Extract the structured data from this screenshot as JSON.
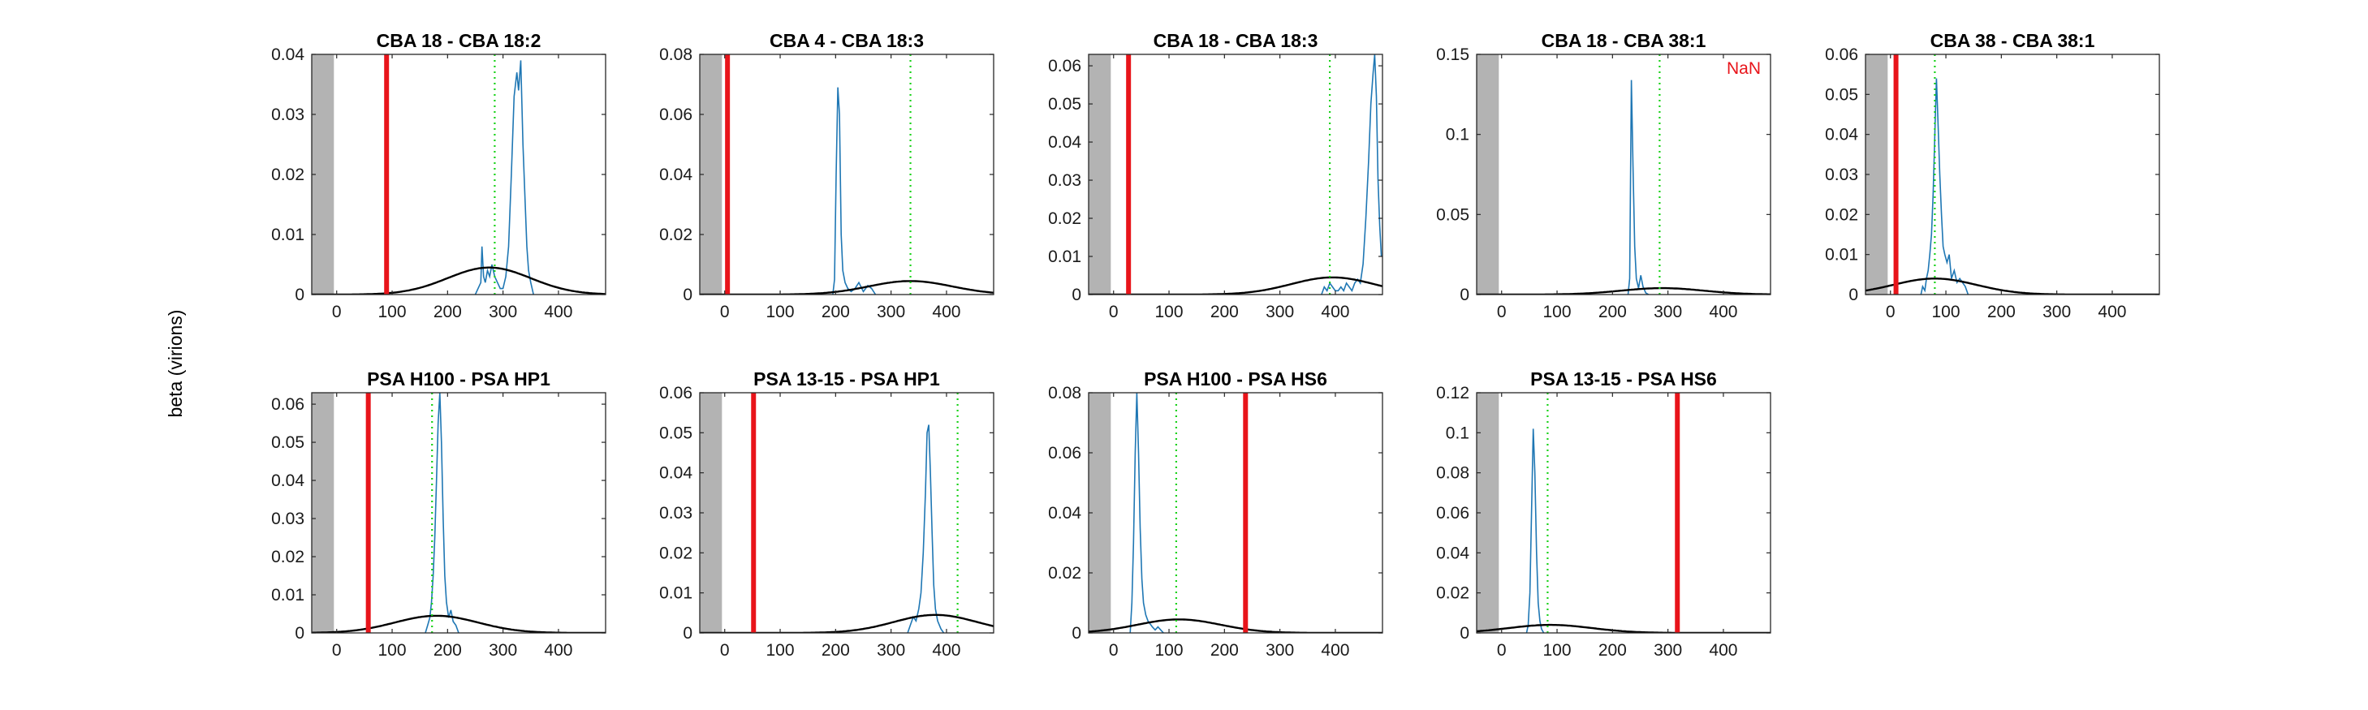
{
  "figure": {
    "ylabel": "beta (virions)"
  },
  "chart_data": [
    {
      "type": "line",
      "title": "CBA 18 - CBA 18:2",
      "xlim": [
        -45,
        485
      ],
      "ylim": [
        0,
        0.04
      ],
      "xticks": [
        0,
        100,
        200,
        300,
        400
      ],
      "yticks": [
        0,
        0.01,
        0.02,
        0.03,
        0.04
      ],
      "ytick_labels": [
        "0",
        "0.01",
        "0.02",
        "0.03",
        "0.04"
      ],
      "shaded_region": [
        -45,
        -5
      ],
      "red_line_x": 90,
      "green_dotted_x": 285,
      "annotation": "",
      "gaussian": {
        "mean": 275,
        "sd": 75,
        "peak": 0.0045
      },
      "histogram": [
        [
          250,
          0
        ],
        [
          255,
          0.001
        ],
        [
          260,
          0.002
        ],
        [
          262,
          0.008
        ],
        [
          265,
          0.003
        ],
        [
          268,
          0.002
        ],
        [
          272,
          0.004
        ],
        [
          276,
          0.003
        ],
        [
          280,
          0.005
        ],
        [
          285,
          0.003
        ],
        [
          290,
          0.002
        ],
        [
          295,
          0.001
        ],
        [
          300,
          0.001
        ],
        [
          305,
          0.003
        ],
        [
          310,
          0.008
        ],
        [
          315,
          0.02
        ],
        [
          320,
          0.033
        ],
        [
          325,
          0.037
        ],
        [
          328,
          0.034
        ],
        [
          332,
          0.039
        ],
        [
          336,
          0.025
        ],
        [
          340,
          0.015
        ],
        [
          343,
          0.008
        ],
        [
          346,
          0.004
        ],
        [
          350,
          0.002
        ],
        [
          355,
          0
        ]
      ]
    },
    {
      "type": "line",
      "title": "CBA 4 - CBA 18:3",
      "xlim": [
        -45,
        485
      ],
      "ylim": [
        0,
        0.08
      ],
      "xticks": [
        0,
        100,
        200,
        300,
        400
      ],
      "yticks": [
        0,
        0.02,
        0.04,
        0.06,
        0.08
      ],
      "ytick_labels": [
        "0",
        "0.02",
        "0.04",
        "0.06",
        "0.08"
      ],
      "shaded_region": [
        -45,
        -5
      ],
      "red_line_x": 5,
      "green_dotted_x": 335,
      "annotation": "",
      "gaussian": {
        "mean": 335,
        "sd": 75,
        "peak": 0.0045
      },
      "histogram": [
        [
          195,
          0
        ],
        [
          198,
          0.005
        ],
        [
          201,
          0.04
        ],
        [
          204,
          0.069
        ],
        [
          207,
          0.06
        ],
        [
          210,
          0.02
        ],
        [
          213,
          0.008
        ],
        [
          217,
          0.004
        ],
        [
          222,
          0.002
        ],
        [
          228,
          0.001
        ],
        [
          235,
          0.002
        ],
        [
          242,
          0.004
        ],
        [
          250,
          0.001
        ],
        [
          258,
          0.003
        ],
        [
          265,
          0.002
        ],
        [
          272,
          0
        ]
      ]
    },
    {
      "type": "line",
      "title": "CBA 18 - CBA 18:3",
      "xlim": [
        -45,
        485
      ],
      "ylim": [
        0,
        0.063
      ],
      "xticks": [
        0,
        100,
        200,
        300,
        400
      ],
      "yticks": [
        0,
        0.01,
        0.02,
        0.03,
        0.04,
        0.05,
        0.06
      ],
      "ytick_labels": [
        "0",
        "0.01",
        "0.02",
        "0.03",
        "0.04",
        "0.05",
        "0.06"
      ],
      "shaded_region": [
        -45,
        -5
      ],
      "red_line_x": 27,
      "green_dotted_x": 390,
      "annotation": "",
      "gaussian": {
        "mean": 395,
        "sd": 75,
        "peak": 0.0045
      },
      "histogram": [
        [
          375,
          0
        ],
        [
          380,
          0.002
        ],
        [
          385,
          0.001
        ],
        [
          390,
          0.003
        ],
        [
          395,
          0.002
        ],
        [
          400,
          0.001
        ],
        [
          405,
          0.001
        ],
        [
          410,
          0.002
        ],
        [
          415,
          0.001
        ],
        [
          420,
          0.003
        ],
        [
          425,
          0.002
        ],
        [
          430,
          0.001
        ],
        [
          435,
          0.003
        ],
        [
          440,
          0.004
        ],
        [
          445,
          0.003
        ],
        [
          450,
          0.008
        ],
        [
          455,
          0.02
        ],
        [
          460,
          0.035
        ],
        [
          464,
          0.05
        ],
        [
          468,
          0.058
        ],
        [
          471,
          0.063
        ],
        [
          474,
          0.052
        ],
        [
          477,
          0.03
        ],
        [
          480,
          0.018
        ],
        [
          483,
          0.01
        ]
      ]
    },
    {
      "type": "line",
      "title": "CBA 18 - CBA 38:1",
      "xlim": [
        -45,
        485
      ],
      "ylim": [
        0,
        0.15
      ],
      "xticks": [
        0,
        100,
        200,
        300,
        400
      ],
      "yticks": [
        0,
        0.05,
        0.1,
        0.15
      ],
      "ytick_labels": [
        "0",
        "0.05",
        "0.1",
        "0.15"
      ],
      "shaded_region": [
        -45,
        -5
      ],
      "red_line_x": null,
      "green_dotted_x": 285,
      "annotation": "NaN",
      "gaussian": {
        "mean": 290,
        "sd": 75,
        "peak": 0.004
      },
      "histogram": [
        [
          228,
          0
        ],
        [
          231,
          0.01
        ],
        [
          234,
          0.134
        ],
        [
          237,
          0.08
        ],
        [
          240,
          0.03
        ],
        [
          243,
          0.01
        ],
        [
          247,
          0.004
        ],
        [
          251,
          0.012
        ],
        [
          255,
          0.005
        ],
        [
          260,
          0.001
        ],
        [
          265,
          0
        ]
      ]
    },
    {
      "type": "line",
      "title": "CBA 38 - CBA 38:1",
      "xlim": [
        -45,
        485
      ],
      "ylim": [
        0,
        0.06
      ],
      "xticks": [
        0,
        100,
        200,
        300,
        400
      ],
      "yticks": [
        0,
        0.01,
        0.02,
        0.03,
        0.04,
        0.05,
        0.06
      ],
      "ytick_labels": [
        "0",
        "0.01",
        "0.02",
        "0.03",
        "0.04",
        "0.05",
        "0.06"
      ],
      "shaded_region": [
        -45,
        -5
      ],
      "red_line_x": 10,
      "green_dotted_x": 80,
      "annotation": "",
      "gaussian": {
        "mean": 80,
        "sd": 75,
        "peak": 0.004
      },
      "histogram": [
        [
          55,
          0
        ],
        [
          58,
          0.002
        ],
        [
          62,
          0.001
        ],
        [
          65,
          0.004
        ],
        [
          68,
          0.006
        ],
        [
          71,
          0.01
        ],
        [
          74,
          0.015
        ],
        [
          77,
          0.025
        ],
        [
          80,
          0.04
        ],
        [
          83,
          0.054
        ],
        [
          86,
          0.042
        ],
        [
          89,
          0.03
        ],
        [
          92,
          0.02
        ],
        [
          95,
          0.012
        ],
        [
          98,
          0.01
        ],
        [
          102,
          0.008
        ],
        [
          106,
          0.01
        ],
        [
          110,
          0.004
        ],
        [
          115,
          0.006
        ],
        [
          120,
          0.003
        ],
        [
          125,
          0.004
        ],
        [
          130,
          0.003
        ],
        [
          135,
          0.002
        ],
        [
          140,
          0
        ]
      ]
    },
    {
      "type": "line",
      "title": "PSA H100 - PSA HP1",
      "xlim": [
        -45,
        485
      ],
      "ylim": [
        0,
        0.063
      ],
      "xticks": [
        0,
        100,
        200,
        300,
        400
      ],
      "yticks": [
        0,
        0.01,
        0.02,
        0.03,
        0.04,
        0.05,
        0.06
      ],
      "ytick_labels": [
        "0",
        "0.01",
        "0.02",
        "0.03",
        "0.04",
        "0.05",
        "0.06"
      ],
      "shaded_region": [
        -45,
        -5
      ],
      "red_line_x": 57,
      "green_dotted_x": 172,
      "annotation": "",
      "gaussian": {
        "mean": 180,
        "sd": 75,
        "peak": 0.0045
      },
      "histogram": [
        [
          160,
          0
        ],
        [
          164,
          0.002
        ],
        [
          168,
          0.004
        ],
        [
          171,
          0.008
        ],
        [
          174,
          0.015
        ],
        [
          177,
          0.025
        ],
        [
          180,
          0.04
        ],
        [
          183,
          0.055
        ],
        [
          186,
          0.063
        ],
        [
          189,
          0.05
        ],
        [
          192,
          0.03
        ],
        [
          195,
          0.015
        ],
        [
          198,
          0.008
        ],
        [
          202,
          0.004
        ],
        [
          206,
          0.006
        ],
        [
          210,
          0.003
        ],
        [
          215,
          0.002
        ],
        [
          220,
          0
        ]
      ]
    },
    {
      "type": "line",
      "title": "PSA 13-15 - PSA HP1",
      "xlim": [
        -45,
        485
      ],
      "ylim": [
        0,
        0.06
      ],
      "xticks": [
        0,
        100,
        200,
        300,
        400
      ],
      "yticks": [
        0,
        0.01,
        0.02,
        0.03,
        0.04,
        0.05,
        0.06
      ],
      "ytick_labels": [
        "0",
        "0.01",
        "0.02",
        "0.03",
        "0.04",
        "0.05",
        "0.06"
      ],
      "shaded_region": [
        -45,
        -5
      ],
      "red_line_x": 52,
      "green_dotted_x": 420,
      "annotation": "",
      "gaussian": {
        "mean": 380,
        "sd": 75,
        "peak": 0.0045
      },
      "histogram": [
        [
          330,
          0
        ],
        [
          335,
          0.002
        ],
        [
          340,
          0.004
        ],
        [
          345,
          0.003
        ],
        [
          350,
          0.006
        ],
        [
          354,
          0.01
        ],
        [
          358,
          0.02
        ],
        [
          362,
          0.035
        ],
        [
          365,
          0.05
        ],
        [
          368,
          0.052
        ],
        [
          371,
          0.04
        ],
        [
          374,
          0.025
        ],
        [
          377,
          0.012
        ],
        [
          380,
          0.006
        ],
        [
          384,
          0.003
        ],
        [
          390,
          0.001
        ],
        [
          395,
          0
        ]
      ]
    },
    {
      "type": "line",
      "title": "PSA H100 - PSA HS6",
      "xlim": [
        -45,
        485
      ],
      "ylim": [
        0,
        0.08
      ],
      "xticks": [
        0,
        100,
        200,
        300,
        400
      ],
      "yticks": [
        0,
        0.02,
        0.04,
        0.06,
        0.08
      ],
      "ytick_labels": [
        "0",
        "0.02",
        "0.04",
        "0.06",
        "0.08"
      ],
      "shaded_region": [
        -45,
        -5
      ],
      "red_line_x": 238,
      "green_dotted_x": 113,
      "annotation": "",
      "gaussian": {
        "mean": 118,
        "sd": 75,
        "peak": 0.0045
      },
      "histogram": [
        [
          30,
          0
        ],
        [
          33,
          0.01
        ],
        [
          36,
          0.03
        ],
        [
          39,
          0.06
        ],
        [
          42,
          0.08
        ],
        [
          45,
          0.06
        ],
        [
          48,
          0.035
        ],
        [
          51,
          0.018
        ],
        [
          54,
          0.01
        ],
        [
          58,
          0.006
        ],
        [
          62,
          0.004
        ],
        [
          66,
          0.003
        ],
        [
          70,
          0.002
        ],
        [
          75,
          0.001
        ],
        [
          80,
          0.002
        ],
        [
          85,
          0.001
        ],
        [
          90,
          0
        ]
      ]
    },
    {
      "type": "line",
      "title": "PSA 13-15 - PSA HS6",
      "xlim": [
        -45,
        485
      ],
      "ylim": [
        0,
        0.12
      ],
      "xticks": [
        0,
        100,
        200,
        300,
        400
      ],
      "yticks": [
        0,
        0.02,
        0.04,
        0.06,
        0.08,
        0.1,
        0.12
      ],
      "ytick_labels": [
        "0",
        "0.02",
        "0.04",
        "0.06",
        "0.08",
        "0.1",
        "0.12"
      ],
      "shaded_region": [
        -45,
        -5
      ],
      "red_line_x": 317,
      "green_dotted_x": 83,
      "annotation": "",
      "gaussian": {
        "mean": 88,
        "sd": 75,
        "peak": 0.004
      },
      "histogram": [
        [
          45,
          0
        ],
        [
          48,
          0.004
        ],
        [
          51,
          0.02
        ],
        [
          54,
          0.06
        ],
        [
          57,
          0.102
        ],
        [
          60,
          0.08
        ],
        [
          63,
          0.04
        ],
        [
          66,
          0.015
        ],
        [
          69,
          0.006
        ],
        [
          72,
          0.002
        ],
        [
          76,
          0
        ]
      ]
    }
  ]
}
